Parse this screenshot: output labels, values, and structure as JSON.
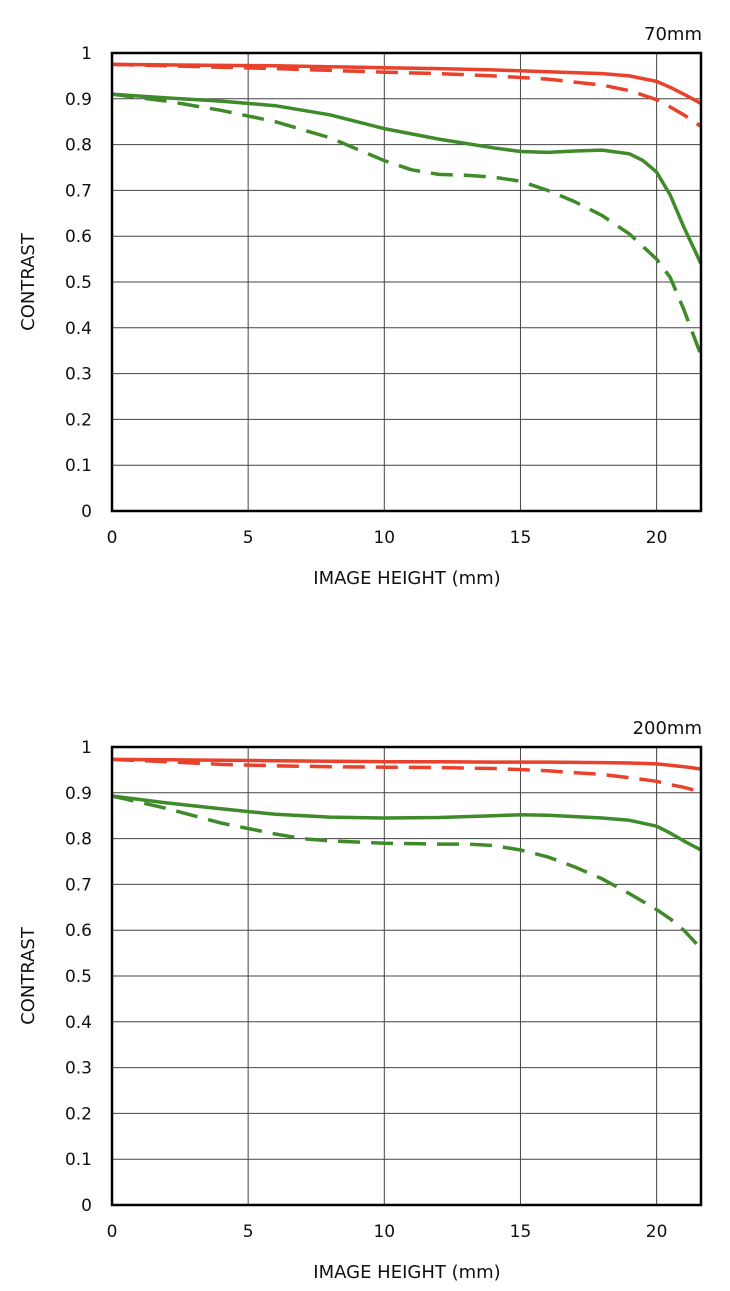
{
  "chart_data": [
    {
      "type": "line",
      "title": "70mm",
      "xlabel": "IMAGE HEIGHT (mm)",
      "ylabel": "CONTRAST",
      "xlim": [
        0,
        21.63
      ],
      "ylim": [
        0,
        1
      ],
      "xticks": [
        0,
        5,
        10,
        15,
        20
      ],
      "yticks": [
        0,
        0.1,
        0.2,
        0.3,
        0.4,
        0.5,
        0.6,
        0.7,
        0.8,
        0.9,
        1
      ],
      "ytick_labels": [
        "0",
        "0.1",
        "0.2",
        "0.3",
        "0.4",
        "0.5",
        "0.6",
        "0.7",
        "0.8",
        "0.9",
        "1"
      ],
      "xtick_labels": [
        "0",
        "5",
        "10",
        "15",
        "20"
      ],
      "grid": true,
      "series": [
        {
          "color": "#e8412c",
          "dash": false,
          "x": [
            0,
            2,
            4,
            6,
            8,
            10,
            12,
            14,
            16,
            18,
            19,
            20,
            20.5,
            21,
            21.63
          ],
          "y": [
            0.975,
            0.974,
            0.973,
            0.972,
            0.97,
            0.968,
            0.966,
            0.963,
            0.959,
            0.955,
            0.95,
            0.938,
            0.925,
            0.91,
            0.89
          ]
        },
        {
          "color": "#e8412c",
          "dash": true,
          "x": [
            0,
            2,
            4,
            6,
            8,
            10,
            12,
            14,
            16,
            18,
            19,
            20,
            20.5,
            21,
            21.63
          ],
          "y": [
            0.975,
            0.972,
            0.969,
            0.966,
            0.962,
            0.958,
            0.955,
            0.95,
            0.943,
            0.93,
            0.918,
            0.898,
            0.882,
            0.865,
            0.84
          ]
        },
        {
          "color": "#3f8a2a",
          "dash": false,
          "x": [
            0,
            2,
            4,
            6,
            8,
            10,
            12,
            14,
            15,
            16,
            17,
            18,
            19,
            19.5,
            20,
            20.5,
            21,
            21.63
          ],
          "y": [
            0.91,
            0.902,
            0.895,
            0.885,
            0.865,
            0.835,
            0.812,
            0.793,
            0.785,
            0.783,
            0.786,
            0.788,
            0.78,
            0.765,
            0.74,
            0.69,
            0.62,
            0.54
          ]
        },
        {
          "color": "#3f8a2a",
          "dash": true,
          "x": [
            0,
            2,
            4,
            6,
            8,
            10,
            11,
            12,
            13,
            14,
            15,
            16,
            17,
            18,
            19,
            20,
            20.5,
            21,
            21.63
          ],
          "y": [
            0.91,
            0.895,
            0.875,
            0.85,
            0.815,
            0.765,
            0.745,
            0.735,
            0.733,
            0.729,
            0.72,
            0.7,
            0.675,
            0.645,
            0.605,
            0.55,
            0.51,
            0.44,
            0.34
          ]
        }
      ]
    },
    {
      "type": "line",
      "title": "200mm",
      "xlabel": "IMAGE HEIGHT (mm)",
      "ylabel": "CONTRAST",
      "xlim": [
        0,
        21.63
      ],
      "ylim": [
        0,
        1
      ],
      "xticks": [
        0,
        5,
        10,
        15,
        20
      ],
      "yticks": [
        0,
        0.1,
        0.2,
        0.3,
        0.4,
        0.5,
        0.6,
        0.7,
        0.8,
        0.9,
        1
      ],
      "ytick_labels": [
        "0",
        "0.1",
        "0.2",
        "0.3",
        "0.4",
        "0.5",
        "0.6",
        "0.7",
        "0.8",
        "0.9",
        "1"
      ],
      "xtick_labels": [
        "0",
        "5",
        "10",
        "15",
        "20"
      ],
      "grid": true,
      "series": [
        {
          "color": "#e8412c",
          "dash": false,
          "x": [
            0,
            2,
            4,
            6,
            8,
            10,
            12,
            14,
            16,
            18,
            19,
            20,
            20.5,
            21,
            21.63
          ],
          "y": [
            0.973,
            0.972,
            0.971,
            0.97,
            0.969,
            0.968,
            0.968,
            0.967,
            0.967,
            0.966,
            0.965,
            0.963,
            0.96,
            0.957,
            0.952
          ]
        },
        {
          "color": "#e8412c",
          "dash": true,
          "x": [
            0,
            2,
            4,
            6,
            8,
            10,
            12,
            14,
            16,
            18,
            19,
            20,
            20.5,
            21,
            21.63
          ],
          "y": [
            0.973,
            0.968,
            0.962,
            0.959,
            0.957,
            0.956,
            0.955,
            0.953,
            0.948,
            0.94,
            0.933,
            0.925,
            0.918,
            0.912,
            0.902
          ]
        },
        {
          "color": "#3f8a2a",
          "dash": false,
          "x": [
            0,
            2,
            4,
            6,
            8,
            10,
            12,
            14,
            15,
            16,
            18,
            19,
            20,
            20.5,
            21,
            21.63
          ],
          "y": [
            0.893,
            0.878,
            0.865,
            0.853,
            0.847,
            0.845,
            0.846,
            0.85,
            0.852,
            0.851,
            0.845,
            0.84,
            0.827,
            0.812,
            0.795,
            0.775
          ]
        },
        {
          "color": "#3f8a2a",
          "dash": true,
          "x": [
            0,
            2,
            4,
            5,
            6,
            7,
            8,
            10,
            12,
            13,
            14,
            15,
            16,
            17,
            18,
            19,
            20,
            20.5,
            21,
            21.63
          ],
          "y": [
            0.893,
            0.866,
            0.834,
            0.822,
            0.81,
            0.8,
            0.795,
            0.79,
            0.788,
            0.788,
            0.785,
            0.775,
            0.76,
            0.738,
            0.712,
            0.68,
            0.645,
            0.625,
            0.6,
            0.56
          ]
        }
      ]
    }
  ]
}
